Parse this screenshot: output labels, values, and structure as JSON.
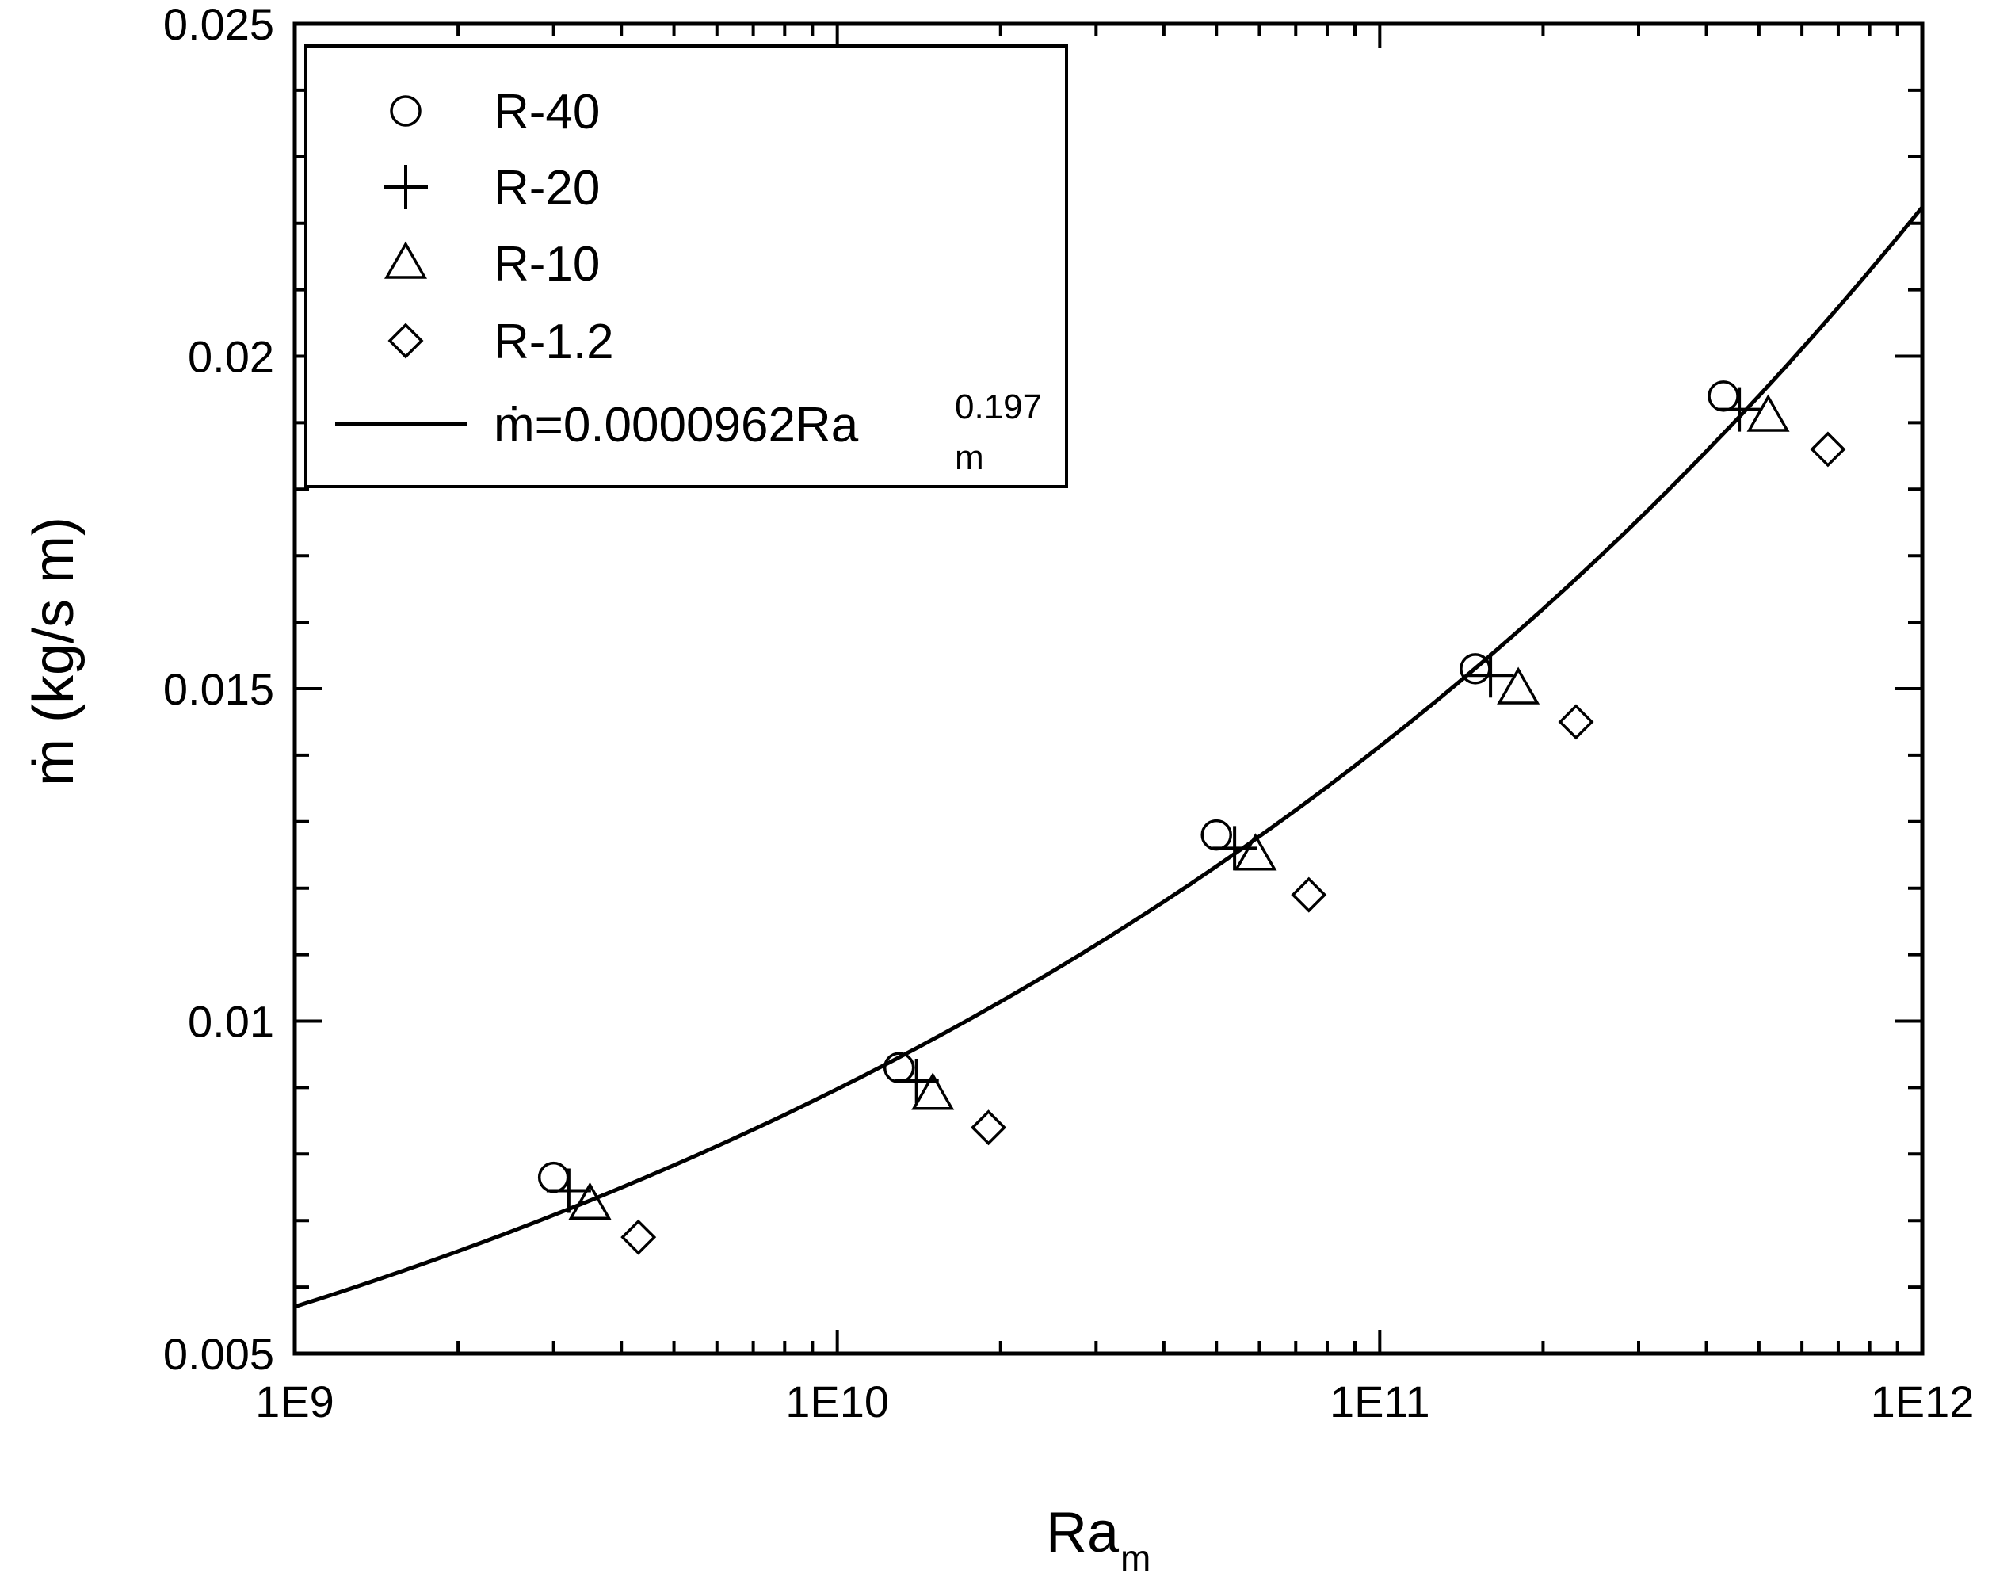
{
  "chart_data": {
    "type": "scatter",
    "x_scale": "log",
    "y_scale": "linear",
    "xlim": [
      "1E9",
      "1E12"
    ],
    "ylim": [
      0.005,
      0.025
    ],
    "x_ticks": [
      {
        "value": 1000000000.0,
        "label": "1E9"
      },
      {
        "value": 10000000000.0,
        "label": "1E10"
      },
      {
        "value": 100000000000.0,
        "label": "1E11"
      },
      {
        "value": 1000000000000.0,
        "label": "1E12"
      }
    ],
    "y_ticks": [
      {
        "value": 0.005,
        "label": "0.005"
      },
      {
        "value": 0.01,
        "label": "0.01"
      },
      {
        "value": 0.015,
        "label": "0.015"
      },
      {
        "value": 0.02,
        "label": "0.02"
      },
      {
        "value": 0.025,
        "label": "0.025"
      }
    ],
    "x_title": "Ra",
    "x_title_sub": "m",
    "y_title": "ṁ (kg/s m)",
    "grid": false,
    "legend_position": "top-left",
    "series": [
      {
        "name": "R-40",
        "marker": "circle",
        "x": [
          3000000000.0,
          13000000000.0,
          50000000000.0,
          150000000000.0,
          430000000000.0
        ],
        "y": [
          0.00765,
          0.0093,
          0.0128,
          0.0153,
          0.0194
        ]
      },
      {
        "name": "R-20",
        "marker": "plus",
        "x": [
          3200000000.0,
          14000000000.0,
          54000000000.0,
          160000000000.0,
          460000000000.0
        ],
        "y": [
          0.00745,
          0.0091,
          0.0126,
          0.0152,
          0.0192
        ]
      },
      {
        "name": "R-10",
        "marker": "triangle",
        "x": [
          3500000000.0,
          15000000000.0,
          59000000000.0,
          180000000000.0,
          520000000000.0
        ],
        "y": [
          0.00725,
          0.0089,
          0.0125,
          0.015,
          0.0191
        ]
      },
      {
        "name": "R-1.2",
        "marker": "diamond",
        "x": [
          4300000000.0,
          19000000000.0,
          74000000000.0,
          230000000000.0,
          670000000000.0
        ],
        "y": [
          0.00675,
          0.0084,
          0.0119,
          0.0145,
          0.0186
        ]
      }
    ],
    "fit": {
      "label_main": "ṁ=0.0000962Ra",
      "label_sub": "m",
      "label_sup": "0.197",
      "coefficient": 9.62e-05,
      "exponent": 0.197
    }
  }
}
